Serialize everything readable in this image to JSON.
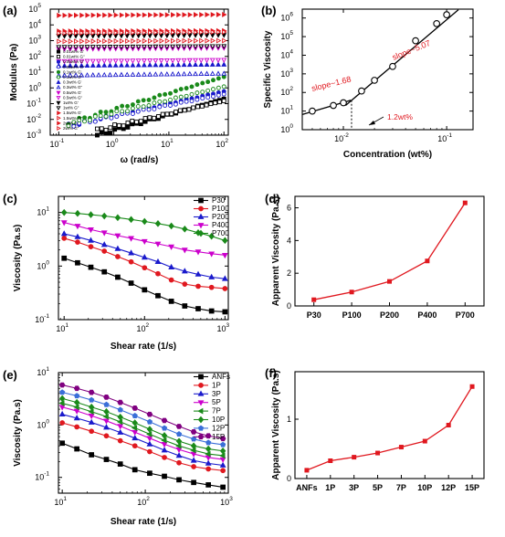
{
  "panels": {
    "a": {
      "label": "(a)",
      "chart_data": {
        "type": "scatter",
        "xlabel": "ω (rad/s)",
        "ylabel": "Modulus (Pa)",
        "xscale": "log",
        "yscale": "log",
        "xlim": [
          0.07,
          120
        ],
        "ylim": [
          0.001,
          100000
        ],
        "xticks": [
          {
            "v": 0.1,
            "label": "10",
            "exp": "-1"
          },
          {
            "v": 1,
            "label": "10",
            "exp": "0"
          },
          {
            "v": 10,
            "label": "10",
            "exp": "1"
          },
          {
            "v": 100,
            "label": "10",
            "exp": "2"
          }
        ],
        "yticks": [
          {
            "v": 0.001,
            "label": "10",
            "exp": "-3"
          },
          {
            "v": 0.01,
            "label": "10",
            "exp": "-2"
          },
          {
            "v": 0.1,
            "label": "10",
            "exp": "-1"
          },
          {
            "v": 1,
            "label": "10",
            "exp": "0"
          },
          {
            "v": 10,
            "label": "10",
            "exp": "1"
          },
          {
            "v": 100,
            "label": "10",
            "exp": "2"
          },
          {
            "v": 1000,
            "label": "10",
            "exp": "3"
          },
          {
            "v": 10000,
            "label": "10",
            "exp": "4"
          },
          {
            "v": 100000,
            "label": "10",
            "exp": "5"
          }
        ],
        "legend_position": "left",
        "series": [
          {
            "name": "0.01wt% G'",
            "color": "#000000",
            "marker": "square",
            "filled": true,
            "x_range": [
              0.5,
              100
            ],
            "y_range": [
              0.001,
              0.2
            ]
          },
          {
            "name": "0.01wt% G\"",
            "color": "#000000",
            "marker": "square",
            "filled": false,
            "x_range": [
              0.5,
              100
            ],
            "y_range": [
              0.002,
              0.15
            ]
          },
          {
            "name": "0.05wt% G'",
            "color": "#1a1acc",
            "marker": "circle",
            "filled": true,
            "x_range": [
              0.15,
              100
            ],
            "y_range": [
              0.004,
              0.6
            ]
          },
          {
            "name": "0.05wt% G\"",
            "color": "#1a1acc",
            "marker": "circle",
            "filled": false,
            "x_range": [
              0.15,
              100
            ],
            "y_range": [
              0.004,
              0.4
            ]
          },
          {
            "name": "0.1wt% G'",
            "color": "#1a8a1a",
            "marker": "circle",
            "filled": true,
            "x_range": [
              0.15,
              100
            ],
            "y_range": [
              0.006,
              5
            ]
          },
          {
            "name": "0.1wt% G\"",
            "color": "#1a8a1a",
            "marker": "circle",
            "filled": false,
            "x_range": [
              0.15,
              100
            ],
            "y_range": [
              0.005,
              1.2
            ]
          },
          {
            "name": "0.3wt% G'",
            "color": "#1a1acc",
            "marker": "triangle-up",
            "filled": true,
            "x_range": [
              0.1,
              100
            ],
            "y_range": [
              25,
              30
            ]
          },
          {
            "name": "0.3wt% G\"",
            "color": "#1a1acc",
            "marker": "triangle-up",
            "filled": false,
            "x_range": [
              0.1,
              100
            ],
            "y_range": [
              6,
              8
            ]
          },
          {
            "name": "0.5wt% G'",
            "color": "#cc00cc",
            "marker": "triangle-down",
            "filled": true,
            "x_range": [
              0.1,
              100
            ],
            "y_range": [
              300,
              350
            ]
          },
          {
            "name": "0.5wt% G\"",
            "color": "#cc00cc",
            "marker": "triangle-down",
            "filled": false,
            "x_range": [
              0.1,
              100
            ],
            "y_range": [
              50,
              60
            ]
          },
          {
            "name": "1wt% G'",
            "color": "#000000",
            "marker": "triangle-down",
            "filled": true,
            "x_range": [
              0.1,
              100
            ],
            "y_range": [
              2000,
              2300
            ]
          },
          {
            "name": "1wt% G\"",
            "color": "#000000",
            "marker": "triangle-down",
            "filled": false,
            "x_range": [
              0.1,
              100
            ],
            "y_range": [
              400,
              450
            ]
          },
          {
            "name": "1.5wt% G'",
            "color": "#e0181f",
            "marker": "triangle-right",
            "filled": true,
            "x_range": [
              0.1,
              100
            ],
            "y_range": [
              4000,
              4200
            ]
          },
          {
            "name": "1.5wt% G\"",
            "color": "#e0181f",
            "marker": "triangle-right",
            "filled": false,
            "x_range": [
              0.1,
              100
            ],
            "y_range": [
              900,
              1000
            ]
          },
          {
            "name": "2wt% G'",
            "color": "#e0181f",
            "marker": "triangle-right",
            "filled": true,
            "x_range": [
              0.1,
              100
            ],
            "y_range": [
              40000,
              45000
            ]
          },
          {
            "name": "2wt% G\"",
            "color": "#e0181f",
            "marker": "triangle-right",
            "filled": false,
            "x_range": [
              0.1,
              100
            ],
            "y_range": [
              3000,
              3500
            ]
          }
        ]
      }
    },
    "b": {
      "label": "(b)",
      "chart_data": {
        "type": "scatter",
        "xlabel": "Concentration (wt%)",
        "ylabel": "Specific Viscosity",
        "xscale": "log",
        "yscale": "log",
        "xlim": [
          0.004,
          0.18
        ],
        "ylim": [
          1,
          3000000
        ],
        "xticks": [
          {
            "v": 0.01,
            "label": "10",
            "exp": "-2"
          },
          {
            "v": 0.1,
            "label": "10",
            "exp": "-1"
          }
        ],
        "yticks": [
          {
            "v": 1,
            "label": "10",
            "exp": "0"
          },
          {
            "v": 10,
            "label": "10",
            "exp": "1"
          },
          {
            "v": 100,
            "label": "10",
            "exp": "2"
          },
          {
            "v": 1000,
            "label": "10",
            "exp": "3"
          },
          {
            "v": 10000,
            "label": "10",
            "exp": "4"
          },
          {
            "v": 100000,
            "label": "10",
            "exp": "5"
          },
          {
            "v": 1000000,
            "label": "10",
            "exp": "6"
          }
        ],
        "points": [
          {
            "x": 0.005,
            "y": 10
          },
          {
            "x": 0.008,
            "y": 20
          },
          {
            "x": 0.01,
            "y": 28
          },
          {
            "x": 0.015,
            "y": 120
          },
          {
            "x": 0.02,
            "y": 450
          },
          {
            "x": 0.03,
            "y": 2500
          },
          {
            "x": 0.05,
            "y": 60000
          },
          {
            "x": 0.08,
            "y": 500000
          },
          {
            "x": 0.1,
            "y": 1500000
          }
        ],
        "annotations": [
          "slope~1.68",
          "slope~5.07",
          "1.2wt%"
        ]
      }
    },
    "c": {
      "label": "(c)",
      "chart_data": {
        "type": "line",
        "xlabel": "Shear rate (1/s)",
        "ylabel": "Viscosity (Pa.s)",
        "xscale": "log",
        "yscale": "log",
        "xlim": [
          8.5,
          1100
        ],
        "ylim": [
          0.1,
          20
        ],
        "xticks": [
          {
            "v": 10,
            "label": "10",
            "exp": "1"
          },
          {
            "v": 100,
            "label": "10",
            "exp": "2"
          },
          {
            "v": 1000,
            "label": "10",
            "exp": "3"
          }
        ],
        "yticks": [
          {
            "v": 0.1,
            "label": "10",
            "exp": "-1"
          },
          {
            "v": 1,
            "label": "10",
            "exp": "0"
          },
          {
            "v": 10,
            "label": "10",
            "exp": "1"
          }
        ],
        "x": [
          10,
          14.7,
          21.5,
          31.6,
          46.4,
          68.1,
          100,
          146.8,
          215.4,
          316.2,
          464.2,
          681.3,
          1000
        ],
        "legend_position": "top-right",
        "series": [
          {
            "name": "P30",
            "color": "#000000",
            "marker": "square",
            "values": [
              1.4,
              1.15,
              0.95,
              0.78,
              0.62,
              0.48,
              0.36,
              0.28,
              0.22,
              0.18,
              0.16,
              0.145,
              0.14
            ]
          },
          {
            "name": "P100",
            "color": "#e0181f",
            "marker": "circle",
            "values": [
              3.3,
              2.8,
              2.3,
              1.9,
              1.5,
              1.2,
              0.93,
              0.72,
              0.55,
              0.46,
              0.42,
              0.4,
              0.38
            ]
          },
          {
            "name": "P200",
            "color": "#1a1acc",
            "marker": "triangle-up",
            "values": [
              4.0,
              3.5,
              3.0,
              2.5,
              2.1,
              1.75,
              1.45,
              1.2,
              0.95,
              0.8,
              0.7,
              0.62,
              0.58
            ]
          },
          {
            "name": "P400",
            "color": "#cc00cc",
            "marker": "triangle-down",
            "values": [
              6.5,
              5.6,
              4.8,
              4.2,
              3.7,
              3.3,
              2.9,
              2.6,
              2.3,
              2.0,
              1.85,
              1.7,
              1.6
            ]
          },
          {
            "name": "P700",
            "color": "#1a8a1a",
            "marker": "diamond",
            "values": [
              10,
              9.6,
              9.1,
              8.6,
              8.0,
              7.4,
              6.8,
              6.2,
              5.6,
              4.9,
              4.2,
              3.6,
              3.0
            ]
          }
        ]
      }
    },
    "d": {
      "label": "(d)",
      "chart_data": {
        "type": "line",
        "xlabel": "",
        "ylabel": "Apparent Viscosity (Pa.s)",
        "categories": [
          "P30",
          "P100",
          "P200",
          "P400",
          "P700"
        ],
        "values": [
          0.38,
          0.85,
          1.5,
          2.75,
          6.3
        ],
        "ylim": [
          0,
          6.7
        ],
        "yticks": [
          0,
          2,
          4,
          6
        ],
        "color": "#e0181f"
      }
    },
    "e": {
      "label": "(e)",
      "chart_data": {
        "type": "line",
        "xlabel": "Shear rate (1/s)",
        "ylabel": "Viscosity (Pa.s)",
        "xscale": "log",
        "yscale": "log",
        "xlim": [
          9,
          1000
        ],
        "ylim": [
          0.05,
          10
        ],
        "xticks": [
          {
            "v": 10,
            "label": "10",
            "exp": "1"
          },
          {
            "v": 100,
            "label": "10",
            "exp": "2"
          },
          {
            "v": 1000,
            "label": "10",
            "exp": "3"
          }
        ],
        "yticks": [
          {
            "v": 0.1,
            "label": "10",
            "exp": "-1"
          },
          {
            "v": 1,
            "label": "10",
            "exp": "0"
          },
          {
            "v": 10,
            "label": "10",
            "exp": "1"
          }
        ],
        "x": [
          10,
          15,
          22.5,
          34,
          50,
          75,
          113,
          170,
          255,
          383,
          575,
          862
        ],
        "legend_position": "top-right",
        "series": [
          {
            "name": "ANFs",
            "color": "#000000",
            "marker": "square",
            "values": [
              0.45,
              0.35,
              0.27,
              0.22,
              0.18,
              0.14,
              0.12,
              0.105,
              0.09,
              0.08,
              0.072,
              0.065
            ]
          },
          {
            "name": "1P",
            "color": "#e0181f",
            "marker": "circle",
            "values": [
              1.1,
              0.92,
              0.76,
              0.62,
              0.5,
              0.4,
              0.31,
              0.24,
              0.19,
              0.16,
              0.145,
              0.135
            ]
          },
          {
            "name": "3P",
            "color": "#1a1acc",
            "marker": "triangle-up",
            "values": [
              1.6,
              1.35,
              1.12,
              0.9,
              0.72,
              0.56,
              0.43,
              0.33,
              0.26,
              0.21,
              0.185,
              0.17
            ]
          },
          {
            "name": "5P",
            "color": "#cc00cc",
            "marker": "triangle-down",
            "values": [
              2.2,
              1.85,
              1.5,
              1.2,
              0.95,
              0.73,
              0.56,
              0.43,
              0.34,
              0.28,
              0.24,
              0.22
            ]
          },
          {
            "name": "7P",
            "color": "#1a8a1a",
            "marker": "triangle-left",
            "values": [
              2.6,
              2.2,
              1.8,
              1.45,
              1.15,
              0.88,
              0.67,
              0.51,
              0.4,
              0.33,
              0.28,
              0.26
            ]
          },
          {
            "name": "10P",
            "color": "#1a8a1a",
            "marker": "diamond",
            "values": [
              3.2,
              2.7,
              2.2,
              1.8,
              1.42,
              1.1,
              0.83,
              0.63,
              0.49,
              0.4,
              0.35,
              0.32
            ]
          },
          {
            "name": "12P",
            "color": "#3a6fd8",
            "marker": "pentagon",
            "values": [
              4.2,
              3.6,
              3.0,
              2.45,
              1.95,
              1.5,
              1.15,
              0.87,
              0.67,
              0.54,
              0.46,
              0.42
            ]
          },
          {
            "name": "15P",
            "color": "#800080",
            "marker": "hexagon",
            "values": [
              5.8,
              5.0,
              4.2,
              3.4,
              2.7,
              2.1,
              1.6,
              1.22,
              0.94,
              0.74,
              0.62,
              0.55
            ]
          }
        ]
      }
    },
    "f": {
      "label": "(f)",
      "chart_data": {
        "type": "line",
        "xlabel": "",
        "ylabel": "Apparent Viscosity (Pa.s)",
        "categories": [
          "ANFs",
          "1P",
          "3P",
          "5P",
          "7P",
          "10P",
          "12P",
          "15P"
        ],
        "values": [
          0.14,
          0.3,
          0.36,
          0.43,
          0.53,
          0.63,
          0.9,
          1.55
        ],
        "ylim": [
          0,
          1.8
        ],
        "yticks": [
          0,
          1
        ],
        "color": "#e0181f"
      }
    }
  }
}
